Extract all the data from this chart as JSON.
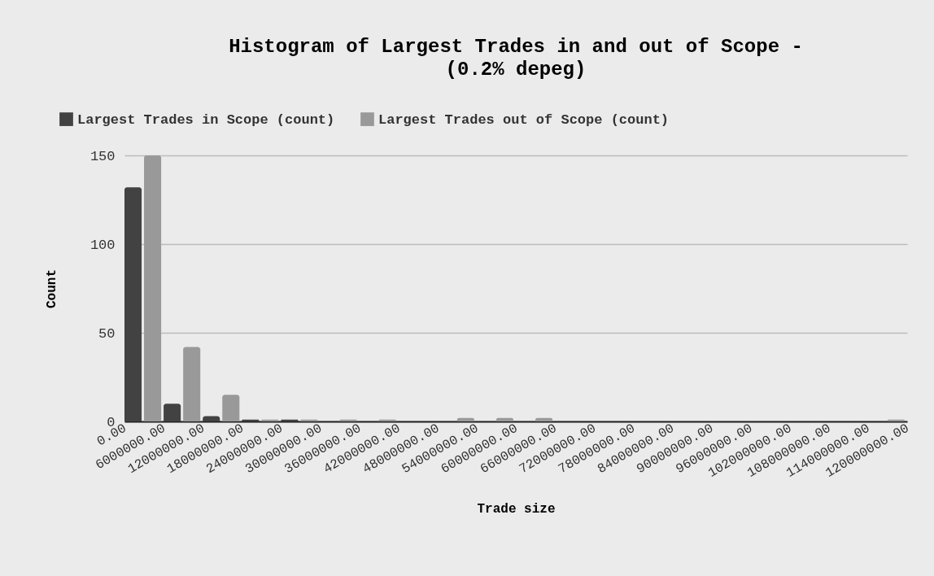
{
  "chart_data": {
    "type": "histogram",
    "title": "Histogram of Largest Trades in and out of Scope - (0.2% depeg)",
    "xlabel": "Trade size",
    "ylabel": "Count",
    "bins": [
      0,
      6000000,
      12000000,
      18000000,
      24000000,
      30000000,
      36000000,
      42000000,
      48000000,
      54000000,
      60000000,
      66000000,
      72000000,
      78000000,
      84000000,
      90000000,
      96000000,
      102000000,
      108000000,
      114000000,
      120000000
    ],
    "series": [
      {
        "name": "Largest Trades in Scope (count)",
        "color": "#424242",
        "values": [
          132,
          10,
          3,
          1,
          1,
          0,
          0,
          0,
          0,
          0,
          0,
          0,
          0,
          0,
          0,
          0,
          0,
          0,
          0,
          0
        ]
      },
      {
        "name": "Largest Trades out of Scope (count)",
        "color": "#999999",
        "values": [
          150,
          42,
          15,
          1,
          1,
          1,
          1,
          0,
          2,
          2,
          2,
          0,
          0,
          0,
          0,
          0,
          0,
          0,
          0,
          1
        ]
      }
    ],
    "xlim": [
      0,
      120000000
    ],
    "xticks": [
      {
        "value": 0,
        "label": "0.00"
      },
      {
        "value": 6000000,
        "label": "6000000.00"
      },
      {
        "value": 12000000,
        "label": "12000000.00"
      },
      {
        "value": 18000000,
        "label": "18000000.00"
      },
      {
        "value": 24000000,
        "label": "24000000.00"
      },
      {
        "value": 30000000,
        "label": "30000000.00"
      },
      {
        "value": 36000000,
        "label": "36000000.00"
      },
      {
        "value": 42000000,
        "label": "42000000.00"
      },
      {
        "value": 48000000,
        "label": "48000000.00"
      },
      {
        "value": 54000000,
        "label": "54000000.00"
      },
      {
        "value": 60000000,
        "label": "60000000.00"
      },
      {
        "value": 66000000,
        "label": "66000000.00"
      },
      {
        "value": 72000000,
        "label": "72000000.00"
      },
      {
        "value": 78000000,
        "label": "78000000.00"
      },
      {
        "value": 84000000,
        "label": "84000000.00"
      },
      {
        "value": 90000000,
        "label": "90000000.00"
      },
      {
        "value": 96000000,
        "label": "96000000.00"
      },
      {
        "value": 102000000,
        "label": "102000000.00"
      },
      {
        "value": 108000000,
        "label": "108000000.00"
      },
      {
        "value": 114000000,
        "label": "114000000.00"
      },
      {
        "value": 120000000,
        "label": "120000000.00"
      }
    ],
    "ylim": [
      0,
      150
    ],
    "yticks": [
      0,
      50,
      100,
      150
    ],
    "grid": "y",
    "legend": "top left"
  }
}
